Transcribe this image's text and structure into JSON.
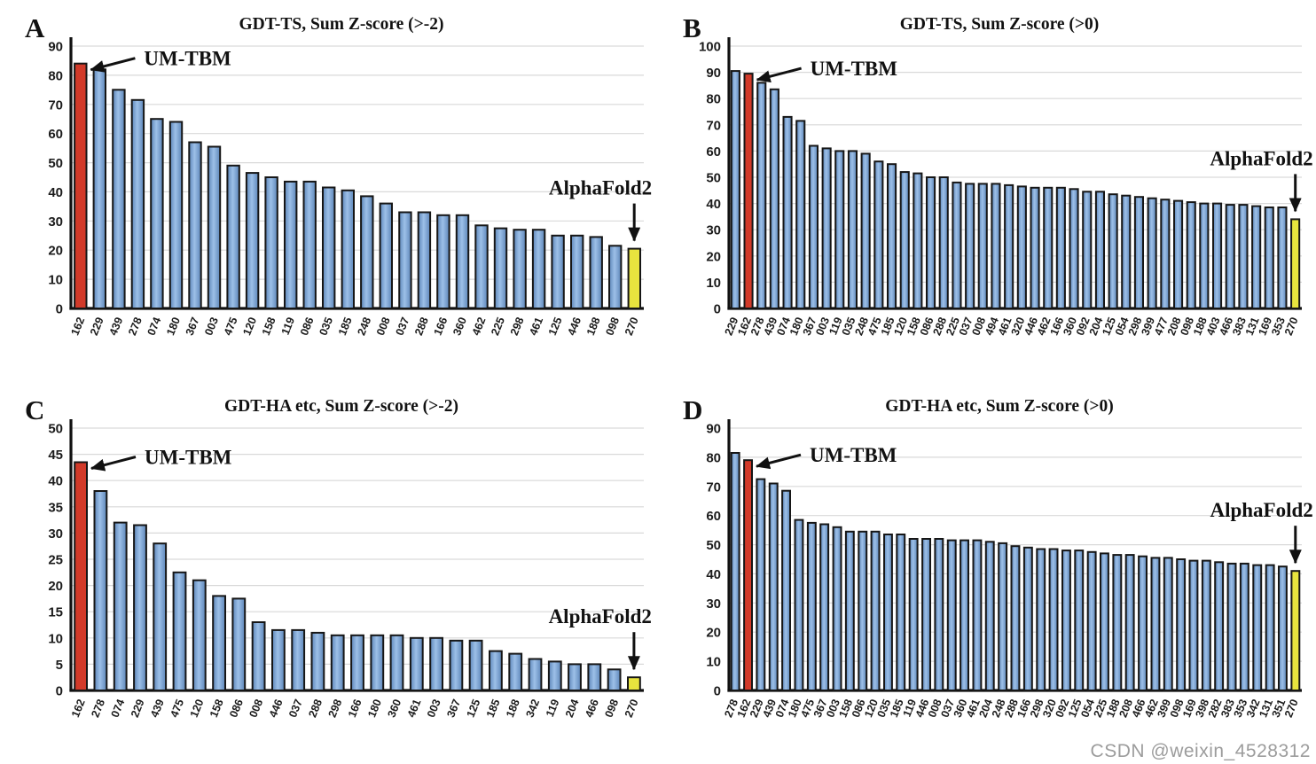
{
  "watermark": "CSDN @weixin_4528312",
  "colors": {
    "bar_blue_dark": "#5d86b9",
    "bar_blue_light": "#9dc0e8",
    "bar_red": "#d23a29",
    "bar_yellow": "#e8e43e",
    "bar_outline": "#161616",
    "gridline": "#d9d9d9",
    "axis": "#111111",
    "text": "#1b1b1b"
  },
  "chart_data": [
    {
      "panel_letter": "A",
      "type": "bar",
      "title": "GDT-TS, Sum Z-score (>-2)",
      "xlabel": "",
      "ylabel": "",
      "ylim": [
        0,
        90
      ],
      "yticks": [
        0,
        10,
        20,
        30,
        40,
        50,
        60,
        70,
        80,
        90
      ],
      "grid": true,
      "categories": [
        "162",
        "229",
        "439",
        "278",
        "074",
        "180",
        "367",
        "003",
        "475",
        "120",
        "158",
        "119",
        "086",
        "035",
        "185",
        "248",
        "008",
        "037",
        "288",
        "166",
        "360",
        "462",
        "225",
        "298",
        "461",
        "125",
        "446",
        "188",
        "098",
        "270"
      ],
      "values": [
        84,
        82,
        75,
        71.5,
        65,
        64,
        57,
        55.5,
        49,
        46.5,
        45,
        43.5,
        43.5,
        41.5,
        40.5,
        38.5,
        36,
        33,
        33,
        32,
        32,
        28.5,
        27.5,
        27,
        27,
        25,
        25,
        24.5,
        21.5,
        20.5
      ],
      "highlight_red": {
        "index": 0,
        "category": "162",
        "label": "UM-TBM"
      },
      "highlight_yellow": {
        "index": 29,
        "category": "270",
        "label": "AlphaFold2"
      }
    },
    {
      "panel_letter": "B",
      "type": "bar",
      "title": "GDT-TS, Sum Z-score (>0)",
      "xlabel": "",
      "ylabel": "",
      "ylim": [
        0,
        100
      ],
      "yticks": [
        0,
        10,
        20,
        30,
        40,
        50,
        60,
        70,
        80,
        90,
        100
      ],
      "grid": true,
      "categories": [
        "229",
        "162",
        "278",
        "439",
        "074",
        "180",
        "367",
        "003",
        "119",
        "035",
        "248",
        "475",
        "185",
        "120",
        "158",
        "086",
        "288",
        "225",
        "037",
        "008",
        "494",
        "461",
        "320",
        "446",
        "462",
        "166",
        "360",
        "092",
        "204",
        "125",
        "054",
        "298",
        "399",
        "477",
        "208",
        "098",
        "188",
        "403",
        "466",
        "383",
        "131",
        "169",
        "353",
        "270"
      ],
      "values": [
        90.5,
        89.5,
        86,
        83.5,
        73,
        71.5,
        62,
        61,
        60,
        60,
        59,
        56,
        55,
        52,
        51.5,
        50,
        50,
        48,
        47.5,
        47.5,
        47.5,
        47,
        46.5,
        46,
        46,
        46,
        45.5,
        44.5,
        44.5,
        43.5,
        43,
        42.5,
        42,
        41.5,
        41,
        40.5,
        40,
        40,
        39.5,
        39.5,
        39,
        38.5,
        38.5,
        34
      ],
      "highlight_red": {
        "index": 1,
        "category": "162",
        "label": "UM-TBM"
      },
      "highlight_yellow": {
        "index": 43,
        "category": "270",
        "label": "AlphaFold2"
      }
    },
    {
      "panel_letter": "C",
      "type": "bar",
      "title": "GDT-HA etc, Sum Z-score (>-2)",
      "xlabel": "",
      "ylabel": "",
      "ylim": [
        0,
        50
      ],
      "yticks": [
        0,
        5,
        10,
        15,
        20,
        25,
        30,
        35,
        40,
        45,
        50
      ],
      "grid": true,
      "categories": [
        "162",
        "278",
        "074",
        "229",
        "439",
        "475",
        "120",
        "158",
        "086",
        "008",
        "446",
        "037",
        "288",
        "298",
        "166",
        "180",
        "360",
        "461",
        "003",
        "367",
        "125",
        "185",
        "188",
        "342",
        "119",
        "204",
        "466",
        "098",
        "270"
      ],
      "values": [
        43.5,
        38,
        32,
        31.5,
        28,
        22.5,
        21,
        18,
        17.5,
        13,
        11.5,
        11.5,
        11,
        10.5,
        10.5,
        10.5,
        10.5,
        10,
        10,
        9.5,
        9.5,
        7.5,
        7,
        6,
        5.5,
        5,
        5,
        4,
        2.5
      ],
      "highlight_red": {
        "index": 0,
        "category": "162",
        "label": "UM-TBM"
      },
      "highlight_yellow": {
        "index": 28,
        "category": "270",
        "label": "AlphaFold2"
      }
    },
    {
      "panel_letter": "D",
      "type": "bar",
      "title": "GDT-HA etc, Sum Z-score (>0)",
      "xlabel": "",
      "ylabel": "",
      "ylim": [
        0,
        90
      ],
      "yticks": [
        0,
        10,
        20,
        30,
        40,
        50,
        60,
        70,
        80,
        90
      ],
      "grid": true,
      "categories": [
        "278",
        "162",
        "229",
        "439",
        "074",
        "180",
        "475",
        "367",
        "003",
        "158",
        "086",
        "120",
        "035",
        "185",
        "119",
        "446",
        "008",
        "037",
        "360",
        "461",
        "204",
        "248",
        "288",
        "166",
        "298",
        "320",
        "092",
        "125",
        "054",
        "225",
        "188",
        "208",
        "466",
        "462",
        "399",
        "098",
        "169",
        "398",
        "282",
        "383",
        "353",
        "342",
        "131",
        "351",
        "270"
      ],
      "values": [
        81.5,
        79,
        72.5,
        71,
        68.5,
        58.5,
        57.5,
        57,
        56,
        54.5,
        54.5,
        54.5,
        53.5,
        53.5,
        52,
        52,
        52,
        51.5,
        51.5,
        51.5,
        51,
        50.5,
        49.5,
        49,
        48.5,
        48.5,
        48,
        48,
        47.5,
        47,
        46.5,
        46.5,
        46,
        45.5,
        45.5,
        45,
        44.5,
        44.5,
        44,
        43.5,
        43.5,
        43,
        43,
        42.5,
        41
      ],
      "highlight_red": {
        "index": 1,
        "category": "162",
        "label": "UM-TBM"
      },
      "highlight_yellow": {
        "index": 44,
        "category": "270",
        "label": "AlphaFold2"
      }
    }
  ]
}
